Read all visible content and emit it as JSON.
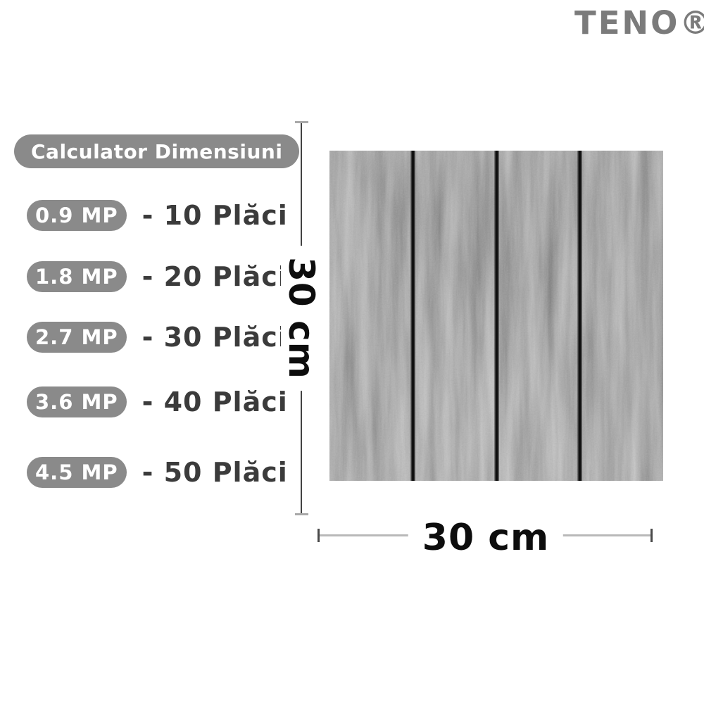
{
  "brand": {
    "logo_text": "TENO®"
  },
  "header": {
    "title": "Calculator Dimensiuni"
  },
  "calculator": {
    "rows": [
      {
        "area": "0.9 MP",
        "result": "- 10 Plăci"
      },
      {
        "area": "1.8 MP",
        "result": "- 20 Plăci"
      },
      {
        "area": "2.7 MP",
        "result": "- 30 Plăci"
      },
      {
        "area": "3.6 MP",
        "result": "- 40 Plăci"
      },
      {
        "area": "4.5 MP",
        "result": "- 50 Plăci"
      }
    ]
  },
  "diagram": {
    "height_label": "30 cm",
    "width_label": "30 cm",
    "planks": 4
  },
  "colors": {
    "pill_gray": "#8a8a8a",
    "text_dark": "#3b3b3b",
    "logo_gray": "#7b7b7b",
    "wood_base": "#565656",
    "dimension_line": "#b9b9b9"
  }
}
